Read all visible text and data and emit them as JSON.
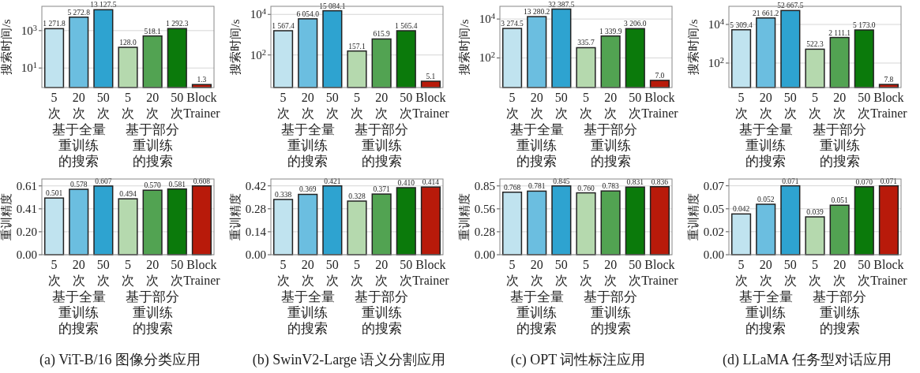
{
  "chart_data": [
    {
      "type": "bar",
      "ylabel": "搜索时间/s",
      "categories": [
        "5\n次",
        "20\n次",
        "50\n次",
        "5\n次",
        "20\n次",
        "50\n次",
        "Block\nTrainer"
      ],
      "values": [
        1271.8,
        5272.8,
        13127.5,
        128.0,
        518.1,
        1292.3,
        1.3
      ],
      "value_labels": [
        "1 271.8",
        "5 272.8",
        "13 127.5",
        "128.0",
        "518.1",
        "1 292.3",
        "1.3"
      ],
      "colors": [
        "#c0e3ef",
        "#6bbee0",
        "#2ea3d0",
        "#b5d9ae",
        "#52a352",
        "#0b7a0b",
        "#b81a0a"
      ],
      "log": "y",
      "ylim": [
        0.9,
        20000
      ],
      "yticks": [
        {
          "value": 10,
          "label": "10$^{1}$"
        },
        {
          "value": 1000,
          "label": "10$^{3}$"
        }
      ],
      "grid": "y",
      "annotations": [
        "基于全量重训练的搜索",
        "基于部分重训练的搜索"
      ]
    },
    {
      "type": "bar",
      "ylabel": "搜索时间/s",
      "categories": [
        "5\n次",
        "20\n次",
        "50\n次",
        "5\n次",
        "20\n次",
        "50\n次",
        "Block\nTrainer"
      ],
      "values": [
        1567.4,
        6054.0,
        15084.1,
        157.1,
        615.9,
        1565.4,
        5.1
      ],
      "value_labels": [
        "1 567.4",
        "6 054.0",
        "15 084.1",
        "157.1",
        "615.9",
        "1 565.4",
        "5.1"
      ],
      "colors": [
        "#c0e3ef",
        "#6bbee0",
        "#2ea3d0",
        "#b5d9ae",
        "#52a352",
        "#0b7a0b",
        "#b81a0a"
      ],
      "log": "y",
      "ylim": [
        2.5,
        25000
      ],
      "yticks": [
        {
          "value": 100,
          "label": "10$^{2}$"
        },
        {
          "value": 10000,
          "label": "10$^{4}$"
        }
      ],
      "grid": "y",
      "annotations": [
        "基于全量重训练的搜索",
        "基于部分重训练的搜索"
      ]
    },
    {
      "type": "bar",
      "ylabel": "搜索时间/s",
      "categories": [
        "5\n次",
        "20\n次",
        "50\n次",
        "5\n次",
        "20\n次",
        "50\n次",
        "Block\nTrainer"
      ],
      "values": [
        3274.5,
        13280.2,
        32387.5,
        335.7,
        1339.9,
        3206.0,
        7.0
      ],
      "value_labels": [
        "3 274.5",
        "13 280.2",
        "32 387.5",
        "335.7",
        "1 339.9",
        "3 206.0",
        "7.0"
      ],
      "colors": [
        "#c0e3ef",
        "#6bbee0",
        "#2ea3d0",
        "#b5d9ae",
        "#52a352",
        "#0b7a0b",
        "#b81a0a"
      ],
      "log": "y",
      "ylim": [
        3,
        45000
      ],
      "yticks": [
        {
          "value": 100,
          "label": "10$^{2}$"
        },
        {
          "value": 10000,
          "label": "10$^{4}$"
        }
      ],
      "grid": "y",
      "annotations": [
        "基于全量重训练的搜索",
        "基于部分重训练的搜索"
      ]
    },
    {
      "type": "bar",
      "ylabel": "搜索时间/s",
      "categories": [
        "5\n次",
        "20\n次",
        "50\n次",
        "5\n次",
        "20\n次",
        "50\n次",
        "Block\nTrainer"
      ],
      "values": [
        5309.4,
        21661.2,
        52667.5,
        522.3,
        2111.1,
        5173.0,
        7.8
      ],
      "value_labels": [
        "5 309.4",
        "21 661.2",
        "52 667.5",
        "522.3",
        "2 111.1",
        "5 173.0",
        "7.8"
      ],
      "colors": [
        "#c0e3ef",
        "#6bbee0",
        "#2ea3d0",
        "#b5d9ae",
        "#52a352",
        "#0b7a0b",
        "#b81a0a"
      ],
      "log": "y",
      "ylim": [
        5.4,
        87000
      ],
      "yticks": [
        {
          "value": 100,
          "label": "10$^{2}$"
        },
        {
          "value": 10000,
          "label": "10$^{4}$"
        }
      ],
      "grid": "y",
      "annotations": [
        "基于全量重训练的搜索",
        "基于部分重训练的搜索"
      ]
    },
    {
      "type": "bar",
      "ylabel": "重训精度",
      "categories": [
        "5\n次",
        "20\n次",
        "50\n次",
        "5\n次",
        "20\n次",
        "50\n次",
        "Block\nTrainer"
      ],
      "values": [
        0.501,
        0.578,
        0.607,
        0.494,
        0.57,
        0.581,
        0.608
      ],
      "value_labels": [
        "0.501",
        "0.578",
        "0.607",
        "0.494",
        "0.570",
        "0.581",
        "0.608"
      ],
      "colors": [
        "#c0e3ef",
        "#6bbee0",
        "#2ea3d0",
        "#b5d9ae",
        "#52a352",
        "#0b7a0b",
        "#b81a0a"
      ],
      "ylim": [
        0,
        0.669
      ],
      "yticks": [
        {
          "value": 0,
          "label": "0.00"
        },
        {
          "value": 0.2027,
          "label": "0.20"
        },
        {
          "value": 0.4053,
          "label": "0.41"
        },
        {
          "value": 0.608,
          "label": "0.61"
        }
      ],
      "grid": "y",
      "annotations": [
        "基于全量重训练的搜索",
        "基于部分重训练的搜索",
        "(a) ViT-B/16 图像分类应用"
      ]
    },
    {
      "type": "bar",
      "ylabel": "重训精度",
      "categories": [
        "5\n次",
        "20\n次",
        "50\n次",
        "5\n次",
        "20\n次",
        "50\n次",
        "Block\nTrainer"
      ],
      "values": [
        0.338,
        0.369,
        0.421,
        0.328,
        0.371,
        0.41,
        0.414
      ],
      "value_labels": [
        "0.338",
        "0.369",
        "0.421",
        "0.328",
        "0.371",
        "0.410",
        "0.414"
      ],
      "colors": [
        "#c0e3ef",
        "#6bbee0",
        "#2ea3d0",
        "#b5d9ae",
        "#52a352",
        "#0b7a0b",
        "#b81a0a"
      ],
      "ylim": [
        0,
        0.463
      ],
      "yticks": [
        {
          "value": 0,
          "label": "0.00"
        },
        {
          "value": 0.1403,
          "label": "0.14"
        },
        {
          "value": 0.2807,
          "label": "0.28"
        },
        {
          "value": 0.421,
          "label": "0.42"
        }
      ],
      "grid": "y",
      "annotations": [
        "基于全量重训练的搜索",
        "基于部分重训练的搜索",
        "(b) SwinV2-Large 语义分割应用"
      ]
    },
    {
      "type": "bar",
      "ylabel": "重训精度",
      "categories": [
        "5\n次",
        "20\n次",
        "50\n次",
        "5\n次",
        "20\n次",
        "50\n次",
        "Block\nTrainer"
      ],
      "values": [
        0.768,
        0.781,
        0.845,
        0.76,
        0.783,
        0.831,
        0.836
      ],
      "value_labels": [
        "0.768",
        "0.781",
        "0.845",
        "0.760",
        "0.783",
        "0.831",
        "0.836"
      ],
      "colors": [
        "#c0e3ef",
        "#6bbee0",
        "#2ea3d0",
        "#b5d9ae",
        "#52a352",
        "#0b7a0b",
        "#b81a0a"
      ],
      "ylim": [
        0,
        0.93
      ],
      "yticks": [
        {
          "value": 0,
          "label": "0.00"
        },
        {
          "value": 0.2817,
          "label": "0.28"
        },
        {
          "value": 0.5633,
          "label": "0.56"
        },
        {
          "value": 0.845,
          "label": "0.85"
        }
      ],
      "grid": "y",
      "annotations": [
        "基于全量重训练的搜索",
        "基于部分重训练的搜索",
        "(c) OPT 词性标注应用"
      ]
    },
    {
      "type": "bar",
      "ylabel": "重训精度",
      "categories": [
        "5\n次",
        "20\n次",
        "50\n次",
        "5\n次",
        "20\n次",
        "50\n次",
        "Block\nTrainer"
      ],
      "values": [
        0.042,
        0.052,
        0.071,
        0.039,
        0.051,
        0.07,
        0.071
      ],
      "value_labels": [
        "0.042",
        "0.052",
        "0.071",
        "0.039",
        "0.051",
        "0.070",
        "0.071"
      ],
      "colors": [
        "#c0e3ef",
        "#6bbee0",
        "#2ea3d0",
        "#b5d9ae",
        "#52a352",
        "#0b7a0b",
        "#b81a0a"
      ],
      "ylim": [
        0,
        0.078
      ],
      "yticks": [
        {
          "value": 0,
          "label": "0.00"
        },
        {
          "value": 0.0237,
          "label": "0.02"
        },
        {
          "value": 0.0473,
          "label": "0.05"
        },
        {
          "value": 0.071,
          "label": "0.07"
        }
      ],
      "grid": "y",
      "annotations": [
        "基于全量重训练的搜索",
        "基于部分重训练的搜索",
        "(d) LLaMA 任务型对话应用"
      ]
    }
  ]
}
